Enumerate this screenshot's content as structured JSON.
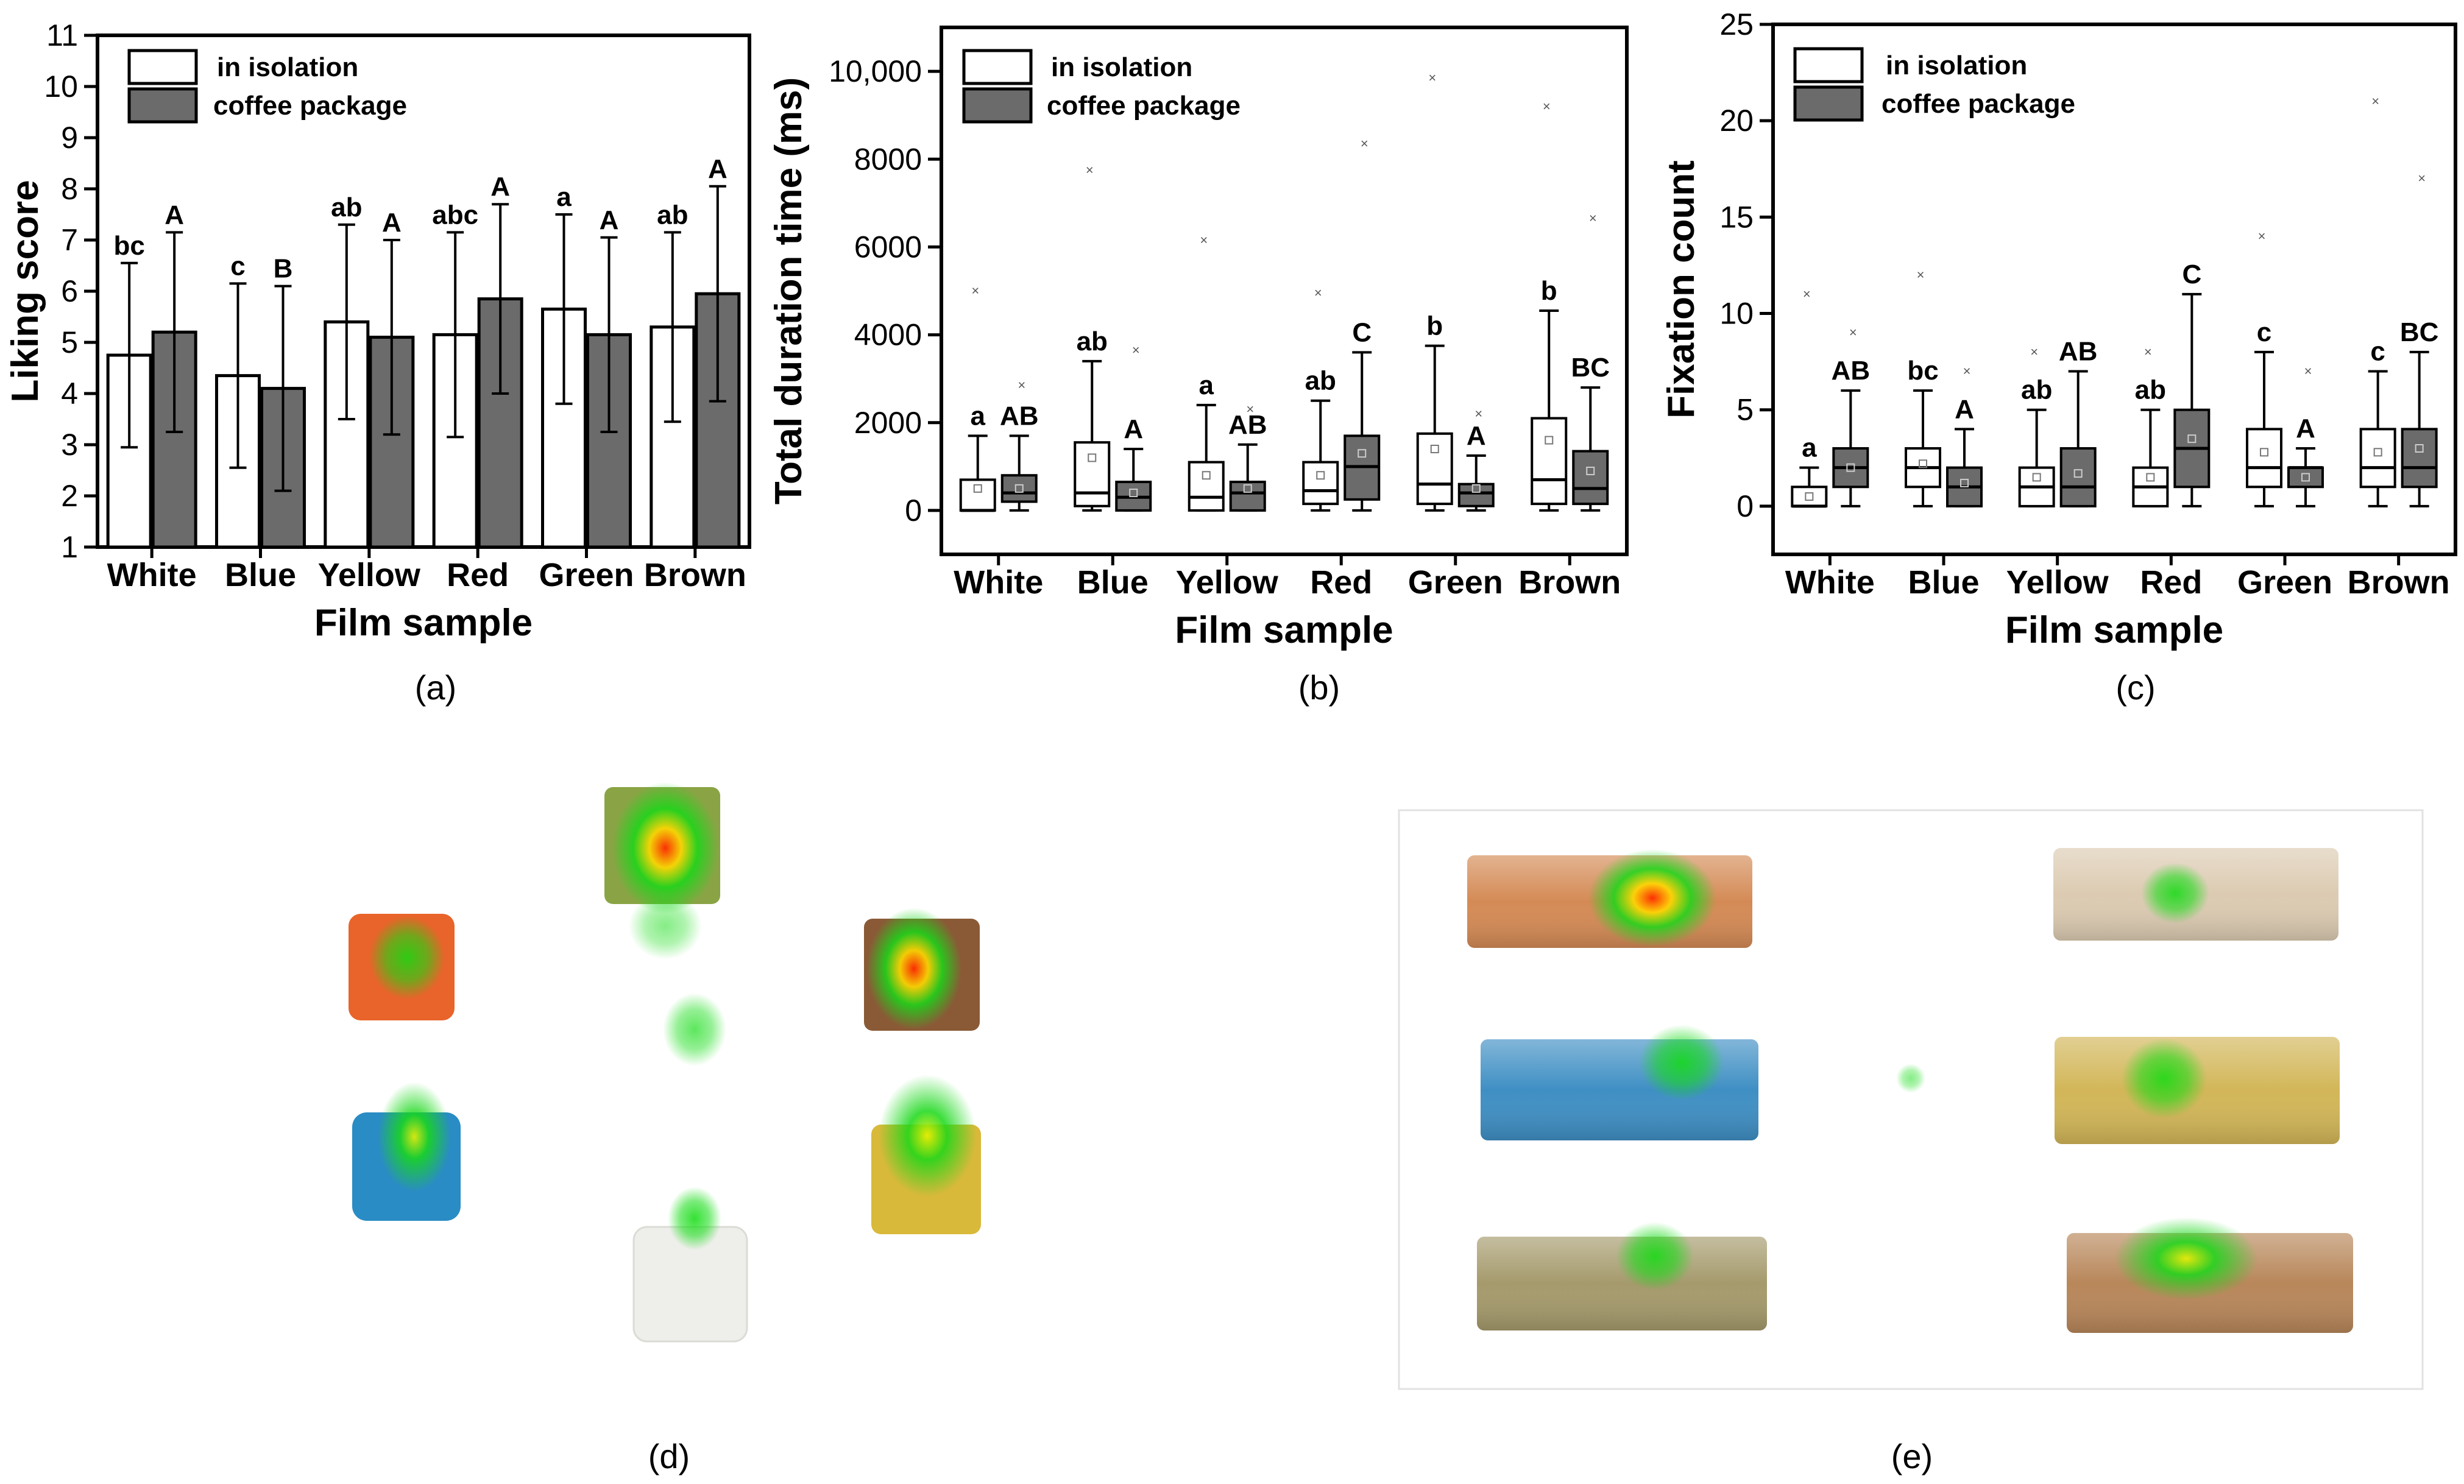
{
  "colors": {
    "white_bar": "#ffffff",
    "dark_bar": "#6b6b6b",
    "axis": "#000000"
  },
  "legend": {
    "isolation": "in isolation",
    "coffee": "coffee package"
  },
  "panel_labels": {
    "a": "(a)",
    "b": "(b)",
    "c": "(c)",
    "d": "(d)",
    "e": "(e)"
  },
  "chart_data": [
    {
      "type": "bar",
      "title": "",
      "xlabel": "Film sample",
      "ylabel": "Liking score",
      "ylim": [
        1,
        11
      ],
      "yticks": [
        "1",
        "2",
        "3",
        "4",
        "5",
        "6",
        "7",
        "8",
        "9",
        "10",
        "11"
      ],
      "categories": [
        "White",
        "Blue",
        "Yellow",
        "Red",
        "Green",
        "Brown"
      ],
      "series": [
        {
          "name": "in isolation",
          "values": [
            4.75,
            4.35,
            5.4,
            5.15,
            5.65,
            5.3
          ],
          "errors": [
            1.8,
            1.8,
            1.9,
            2.0,
            1.85,
            1.85
          ],
          "letters": [
            "bc",
            "c",
            "ab",
            "abc",
            "a",
            "ab"
          ]
        },
        {
          "name": "coffee package",
          "values": [
            5.2,
            4.1,
            5.1,
            5.85,
            5.15,
            5.95
          ],
          "errors": [
            1.95,
            2.0,
            1.9,
            1.85,
            1.9,
            2.1
          ],
          "letters": [
            "A",
            "B",
            "A",
            "A",
            "A",
            "A"
          ]
        }
      ]
    },
    {
      "type": "box",
      "title": "",
      "xlabel": "Film sample",
      "ylabel": "Total duration time (ms)",
      "ylim": [
        -1000,
        11000
      ],
      "yticks": [
        "0",
        "2000",
        "4000",
        "6000",
        "8000",
        "10,000"
      ],
      "categories": [
        "White",
        "Blue",
        "Yellow",
        "Red",
        "Green",
        "Brown"
      ],
      "series": [
        {
          "name": "in isolation",
          "letters": [
            "a",
            "ab",
            "a",
            "ab",
            "b",
            "b"
          ],
          "boxes": [
            {
              "min": 0,
              "q1": 0,
              "median": 0,
              "q3": 700,
              "max": 1700,
              "mean": 500,
              "outlier": 5000
            },
            {
              "min": 0,
              "q1": 100,
              "median": 400,
              "q3": 1550,
              "max": 3400,
              "mean": 1200,
              "outlier": 7750
            },
            {
              "min": 0,
              "q1": 0,
              "median": 300,
              "q3": 1100,
              "max": 2400,
              "mean": 800,
              "outlier": 6150
            },
            {
              "min": 0,
              "q1": 150,
              "median": 450,
              "q3": 1100,
              "max": 2500,
              "mean": 800,
              "outlier": 4950
            },
            {
              "min": 0,
              "q1": 150,
              "median": 600,
              "q3": 1750,
              "max": 3750,
              "mean": 1400,
              "outlier": 9850
            },
            {
              "min": 0,
              "q1": 150,
              "median": 700,
              "q3": 2100,
              "max": 4550,
              "mean": 1600,
              "outlier": 9200
            }
          ]
        },
        {
          "name": "coffee package",
          "letters": [
            "AB",
            "A",
            "AB",
            "C",
            "A",
            "BC"
          ],
          "boxes": [
            {
              "min": 0,
              "q1": 200,
              "median": 400,
              "q3": 800,
              "max": 1700,
              "mean": 500,
              "outlier": 2850
            },
            {
              "min": 0,
              "q1": 0,
              "median": 300,
              "q3": 650,
              "max": 1400,
              "mean": 400,
              "outlier": 3650
            },
            {
              "min": 0,
              "q1": 0,
              "median": 400,
              "q3": 650,
              "max": 1500,
              "mean": 500,
              "outlier": 2300
            },
            {
              "min": 0,
              "q1": 250,
              "median": 1000,
              "q3": 1700,
              "max": 3600,
              "mean": 1300,
              "outlier": 8350
            },
            {
              "min": 0,
              "q1": 100,
              "median": 400,
              "q3": 600,
              "max": 1250,
              "mean": 500,
              "outlier": 2200
            },
            {
              "min": 0,
              "q1": 150,
              "median": 500,
              "q3": 1350,
              "max": 2800,
              "mean": 900,
              "outlier": 6650
            }
          ]
        }
      ]
    },
    {
      "type": "box",
      "title": "",
      "xlabel": "Film sample",
      "ylabel": "Fixation count",
      "ylim": [
        -2.5,
        25
      ],
      "yticks": [
        "0",
        "5",
        "10",
        "15",
        "20",
        "25"
      ],
      "categories": [
        "White",
        "Blue",
        "Yellow",
        "Red",
        "Green",
        "Brown"
      ],
      "series": [
        {
          "name": "in isolation",
          "letters": [
            "a",
            "bc",
            "ab",
            "ab",
            "c",
            "c"
          ],
          "boxes": [
            {
              "min": 0,
              "q1": 0,
              "median": 0,
              "q3": 1,
              "max": 2,
              "mean": 0.5,
              "outlier": 11
            },
            {
              "min": 0,
              "q1": 1,
              "median": 2,
              "q3": 3,
              "max": 6,
              "mean": 2.2,
              "outlier": 12
            },
            {
              "min": 0,
              "q1": 0,
              "median": 1,
              "q3": 2,
              "max": 5,
              "mean": 1.5,
              "outlier": 8
            },
            {
              "min": 0,
              "q1": 0,
              "median": 1,
              "q3": 2,
              "max": 5,
              "mean": 1.5,
              "outlier": 8
            },
            {
              "min": 0,
              "q1": 1,
              "median": 2,
              "q3": 4,
              "max": 8,
              "mean": 2.8,
              "outlier": 14
            },
            {
              "min": 0,
              "q1": 1,
              "median": 2,
              "q3": 4,
              "max": 7,
              "mean": 2.8,
              "outlier": 21
            }
          ]
        },
        {
          "name": "coffee package",
          "letters": [
            "AB",
            "A",
            "AB",
            "C",
            "A",
            "BC"
          ],
          "boxes": [
            {
              "min": 0,
              "q1": 1,
              "median": 2,
              "q3": 3,
              "max": 6,
              "mean": 2,
              "outlier": 9
            },
            {
              "min": 0,
              "q1": 0,
              "median": 1,
              "q3": 2,
              "max": 4,
              "mean": 1.2,
              "outlier": 7
            },
            {
              "min": 0,
              "q1": 0,
              "median": 1,
              "q3": 3,
              "max": 7,
              "mean": 1.7,
              "outlier": null
            },
            {
              "min": 0,
              "q1": 1,
              "median": 3,
              "q3": 5,
              "max": 11,
              "mean": 3.5,
              "outlier": null
            },
            {
              "min": 0,
              "q1": 1,
              "median": 2,
              "q3": 2,
              "max": 3,
              "mean": 1.5,
              "outlier": 7
            },
            {
              "min": 0,
              "q1": 1,
              "median": 2,
              "q3": 4,
              "max": 8,
              "mean": 3,
              "outlier": 17
            }
          ]
        }
      ]
    }
  ],
  "heatmap_d": {
    "samples": [
      {
        "name": "orange-film",
        "color": "#e8642a",
        "heat": "low"
      },
      {
        "name": "green-film",
        "color": "#8aa445",
        "heat": "high"
      },
      {
        "name": "brown-film",
        "color": "#8a5a36",
        "heat": "high"
      },
      {
        "name": "blue-film",
        "color": "#2a8cc4",
        "heat": "medium"
      },
      {
        "name": "yellow-film",
        "color": "#d8b93a",
        "heat": "medium"
      },
      {
        "name": "white-film",
        "color": "#eeeeea",
        "heat": "low"
      }
    ]
  },
  "heatmap_e": {
    "samples": [
      {
        "name": "orange-package",
        "color": "#d48a55",
        "heat": "high"
      },
      {
        "name": "white-package",
        "color": "#dccbb2",
        "heat": "low"
      },
      {
        "name": "blue-package",
        "color": "#3f8fc4",
        "heat": "low"
      },
      {
        "name": "yellow-package",
        "color": "#d2b658",
        "heat": "low"
      },
      {
        "name": "green-package",
        "color": "#a59a6c",
        "heat": "low"
      },
      {
        "name": "brown-package",
        "color": "#b8875a",
        "heat": "medium"
      }
    ]
  }
}
